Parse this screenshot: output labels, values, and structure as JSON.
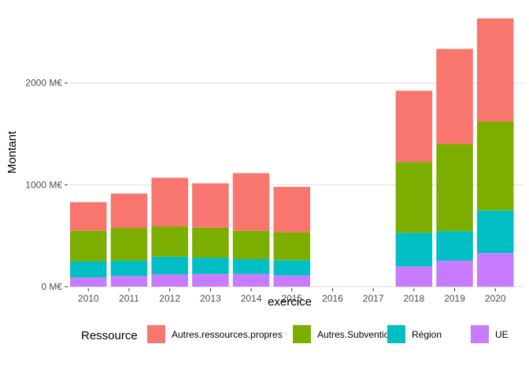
{
  "chart_data": {
    "type": "bar",
    "stacked": true,
    "xlabel": "exercice",
    "ylabel": "Montant",
    "categories": [
      "2010",
      "2011",
      "2012",
      "2013",
      "2014",
      "2015",
      "2016",
      "2017",
      "2018",
      "2019",
      "2020"
    ],
    "ylim": [
      0,
      2700
    ],
    "yticks": [
      {
        "value": 0,
        "label": "0 M€"
      },
      {
        "value": 1000,
        "label": "1000 M€"
      },
      {
        "value": 2000,
        "label": "2000 M€"
      }
    ],
    "grid": true,
    "legend_position": "bottom",
    "legend_title": "Ressource",
    "series": [
      {
        "name": "UE",
        "color": "#C77CFF",
        "values": [
          90,
          105,
          120,
          125,
          125,
          110,
          0,
          0,
          200,
          255,
          330
        ]
      },
      {
        "name": "Région",
        "color": "#00BFC4",
        "values": [
          160,
          150,
          175,
          160,
          145,
          150,
          0,
          0,
          330,
          290,
          420
        ]
      },
      {
        "name": "Autres.Subventions",
        "color": "#7CAE00",
        "values": [
          300,
          320,
          295,
          295,
          280,
          275,
          0,
          0,
          695,
          855,
          870
        ]
      },
      {
        "name": "Autres.ressources.propres",
        "color": "#F8766D",
        "values": [
          280,
          340,
          480,
          435,
          565,
          445,
          0,
          0,
          700,
          935,
          1015
        ]
      }
    ],
    "legend_order": [
      "Autres.ressources.propres",
      "Autres.Subventions",
      "Région",
      "UE"
    ]
  }
}
